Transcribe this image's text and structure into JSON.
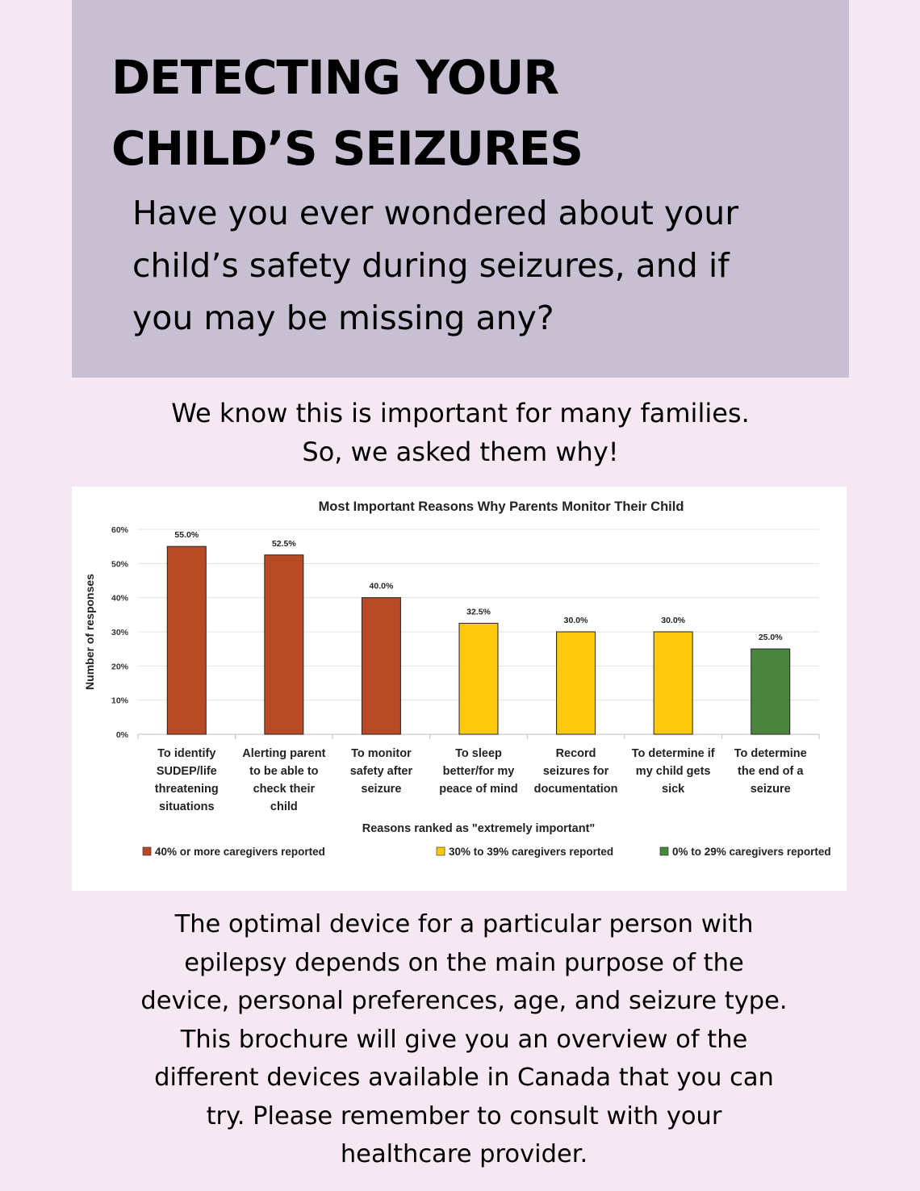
{
  "header": {
    "title_line1": "DETECTING YOUR",
    "title_line2": "CHILD’S SEIZURES",
    "intro_line1": "Have you ever wondered about your",
    "intro_line2": "child’s safety during seizures, and if",
    "intro_line3": "you may be missing any?"
  },
  "subtitle": {
    "line1": "We know this is important for many families.",
    "line2": "So, we asked them why!"
  },
  "chart_data": {
    "type": "bar",
    "title": "Most Important Reasons Why Parents Monitor Their Child",
    "xlabel": "Reasons ranked as \"extremely important\"",
    "ylabel": "Number of responses",
    "ylim": [
      0,
      60
    ],
    "yticks": [
      0,
      10,
      20,
      30,
      40,
      50,
      60
    ],
    "ytick_suffix": "%",
    "grid": true,
    "categories": [
      [
        "To identify",
        "SUDEP/life",
        "threatening",
        "situations"
      ],
      [
        "Alerting parent",
        "to be able to",
        "check their",
        "child"
      ],
      [
        "To monitor",
        "safety after",
        "seizure"
      ],
      [
        "To sleep",
        "better/for my",
        "peace of mind"
      ],
      [
        "Record",
        "seizures for",
        "documentation"
      ],
      [
        "To determine if",
        "my child gets",
        "sick"
      ],
      [
        "To determine",
        "the end of a",
        "seizure"
      ]
    ],
    "values": [
      55.0,
      52.5,
      40.0,
      32.5,
      30.0,
      30.0,
      25.0
    ],
    "value_labels": [
      "55.0%",
      "52.5%",
      "40.0%",
      "32.5%",
      "30.0%",
      "30.0%",
      "25.0%"
    ],
    "bar_groups": [
      0,
      0,
      0,
      1,
      1,
      1,
      2
    ],
    "legend_position": "bottom",
    "legend": [
      {
        "label": "40% or more caregivers reported",
        "color": "#b84a25"
      },
      {
        "label": "30% to 39% caregivers reported",
        "color": "#fec90c"
      },
      {
        "label": "0% to 29% caregivers reported",
        "color": "#4a8540"
      }
    ]
  },
  "footer": {
    "line1": "The optimal device for a particular person with",
    "line2": "epilepsy depends on the main purpose of the",
    "line3": "device, personal preferences, age, and seizure type.",
    "line4": "This brochure will give you an overview of the",
    "line5": "different devices available in Canada that you can",
    "line6": "try. Please remember to consult with your",
    "line7": "healthcare provider."
  }
}
